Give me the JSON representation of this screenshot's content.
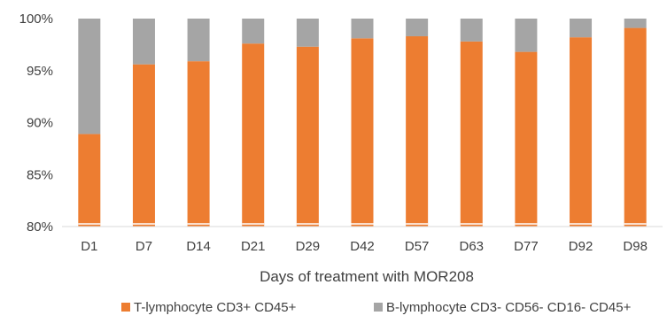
{
  "chart_data": {
    "type": "bar",
    "stacked": "percent",
    "categories": [
      "D1",
      "D7",
      "D14",
      "D21",
      "D29",
      "D42",
      "D57",
      "D63",
      "D77",
      "D92",
      "D98"
    ],
    "series": [
      {
        "name": "T-lymphocyte CD3+ CD45+",
        "color": "#ED7D31",
        "values": [
          88.9,
          95.6,
          95.9,
          97.6,
          97.3,
          98.1,
          98.3,
          97.8,
          96.8,
          98.2,
          99.1
        ]
      },
      {
        "name": "B-lymphocyte CD3- CD56- CD16- CD45+",
        "color": "#A5A5A5",
        "values": [
          11.1,
          4.4,
          4.1,
          2.4,
          2.7,
          1.9,
          1.7,
          2.2,
          3.2,
          1.8,
          0.9
        ]
      }
    ],
    "ylim": [
      80,
      100
    ],
    "yticks": [
      "80%",
      "85%",
      "90%",
      "95%",
      "100%"
    ],
    "ytick_values": [
      80,
      85,
      90,
      95,
      100
    ],
    "xlabel": "Days of treatment with MOR208",
    "ylabel": "",
    "legend_position": "bottom",
    "grid": false
  }
}
